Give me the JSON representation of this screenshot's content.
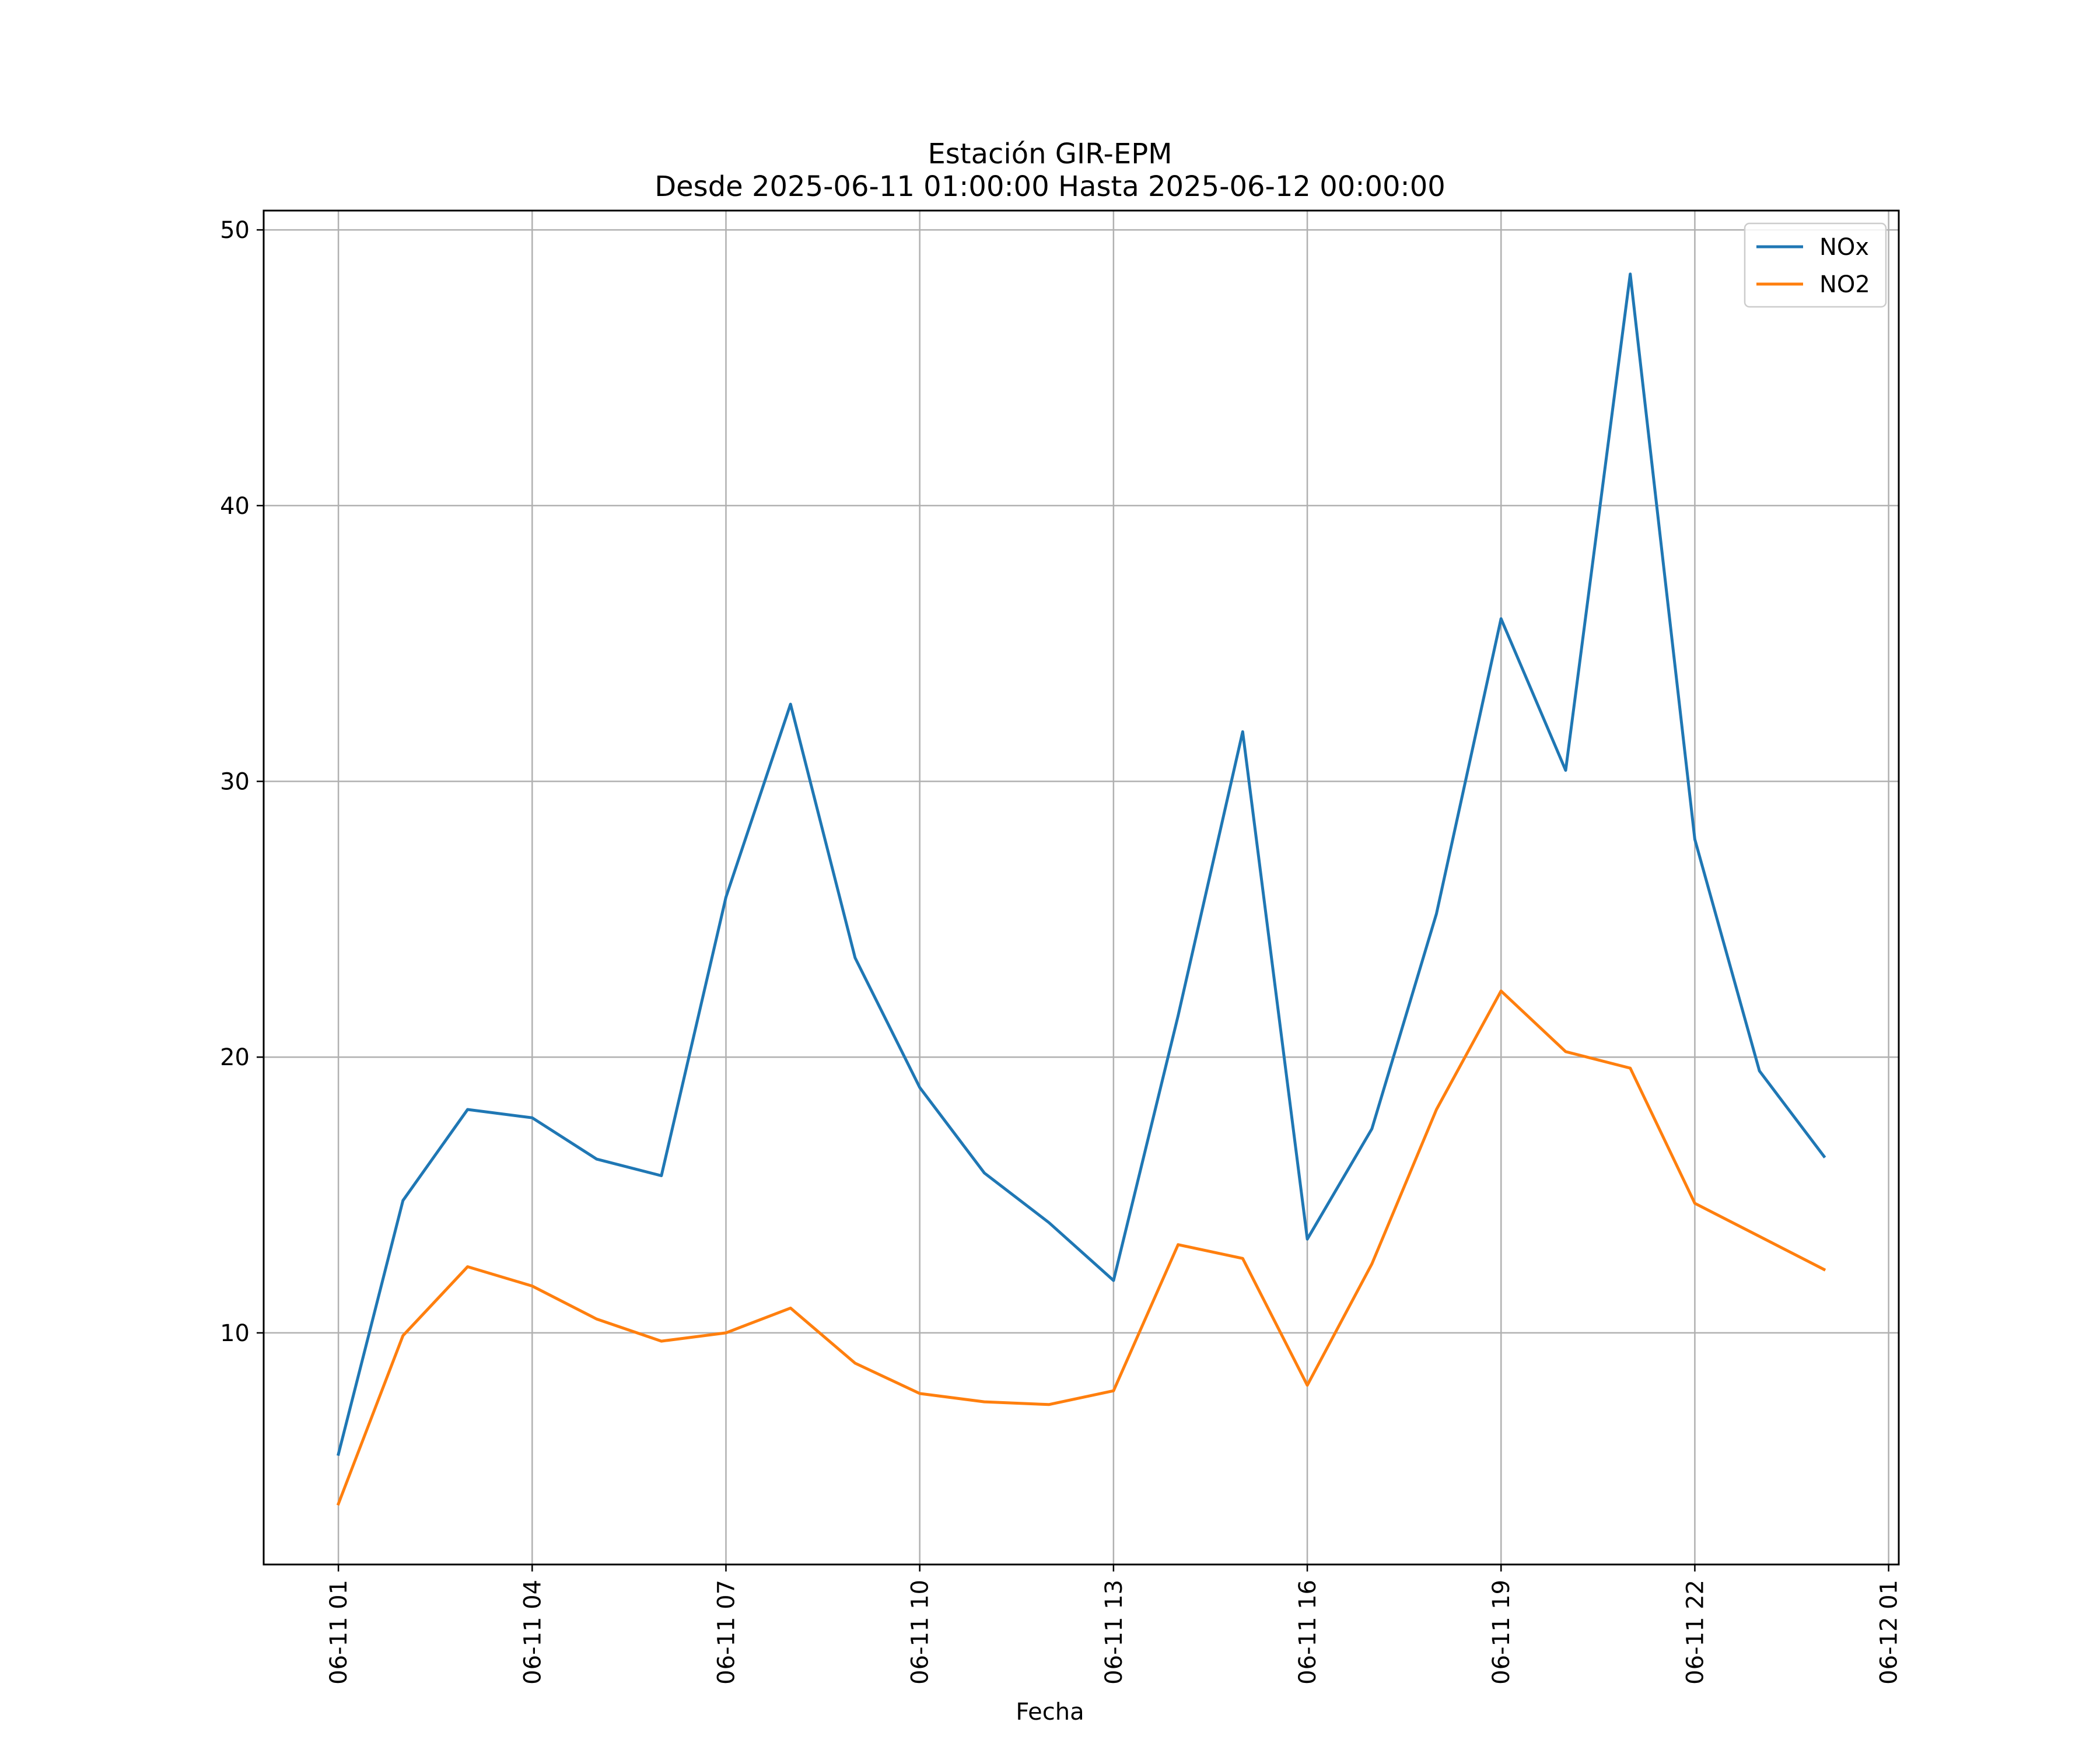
{
  "chart_data": {
    "type": "line",
    "title": "Estación GIR-EPM",
    "subtitle": "Desde 2025-06-11 01:00:00 Hasta 2025-06-12 00:00:00",
    "xlabel": "Fecha",
    "ylabel": "",
    "x": [
      "2025-06-11 01:00",
      "2025-06-11 02:00",
      "2025-06-11 03:00",
      "2025-06-11 04:00",
      "2025-06-11 05:00",
      "2025-06-11 06:00",
      "2025-06-11 07:00",
      "2025-06-11 08:00",
      "2025-06-11 09:00",
      "2025-06-11 10:00",
      "2025-06-11 11:00",
      "2025-06-11 12:00",
      "2025-06-11 13:00",
      "2025-06-11 14:00",
      "2025-06-11 15:00",
      "2025-06-11 16:00",
      "2025-06-11 17:00",
      "2025-06-11 18:00",
      "2025-06-11 19:00",
      "2025-06-11 20:00",
      "2025-06-11 21:00",
      "2025-06-11 22:00",
      "2025-06-11 23:00",
      "2025-06-12 00:00"
    ],
    "series": [
      {
        "name": "NOx",
        "color": "#1f77b4",
        "values": [
          5.6,
          14.8,
          18.1,
          17.8,
          16.3,
          15.7,
          25.8,
          32.8,
          23.6,
          18.9,
          15.8,
          14.0,
          11.9,
          21.5,
          31.8,
          13.4,
          17.4,
          25.2,
          35.9,
          30.4,
          48.4,
          27.9,
          19.5,
          16.4
        ]
      },
      {
        "name": "NO2",
        "color": "#ff7f0e",
        "values": [
          3.8,
          9.9,
          12.4,
          11.7,
          10.5,
          9.7,
          10.0,
          10.9,
          8.9,
          7.8,
          7.5,
          7.4,
          7.9,
          13.2,
          12.7,
          8.1,
          12.5,
          18.1,
          22.4,
          20.2,
          19.6,
          14.7,
          13.5,
          12.3
        ]
      }
    ],
    "yticks": [
      10,
      20,
      30,
      40,
      50
    ],
    "xtick_labels": [
      "06-11 01",
      "06-11 04",
      "06-11 07",
      "06-11 10",
      "06-11 13",
      "06-11 16",
      "06-11 19",
      "06-11 22",
      "06-12 01"
    ],
    "ylim": [
      1.6,
      50.7
    ],
    "grid": true,
    "legend_position": "top-right"
  }
}
